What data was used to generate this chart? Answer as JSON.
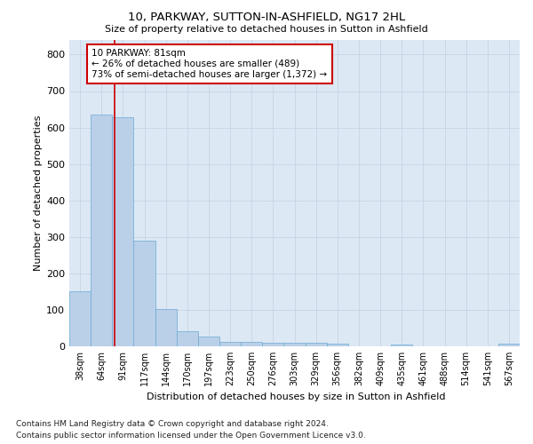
{
  "title": "10, PARKWAY, SUTTON-IN-ASHFIELD, NG17 2HL",
  "subtitle": "Size of property relative to detached houses in Sutton in Ashfield",
  "xlabel": "Distribution of detached houses by size in Sutton in Ashfield",
  "ylabel": "Number of detached properties",
  "footnote1": "Contains HM Land Registry data © Crown copyright and database right 2024.",
  "footnote2": "Contains public sector information licensed under the Open Government Licence v3.0.",
  "annotation_line1": "10 PARKWAY: 81sqm",
  "annotation_line2": "← 26% of detached houses are smaller (489)",
  "annotation_line3": "73% of semi-detached houses are larger (1,372) →",
  "bar_color": "#bad0e8",
  "bar_edge_color": "#6aaad4",
  "red_line_color": "#cc0000",
  "annotation_box_edge_color": "#cc0000",
  "categories": [
    "38sqm",
    "64sqm",
    "91sqm",
    "117sqm",
    "144sqm",
    "170sqm",
    "197sqm",
    "223sqm",
    "250sqm",
    "276sqm",
    "303sqm",
    "329sqm",
    "356sqm",
    "382sqm",
    "409sqm",
    "435sqm",
    "461sqm",
    "488sqm",
    "514sqm",
    "541sqm",
    "567sqm"
  ],
  "values": [
    150,
    635,
    627,
    290,
    103,
    42,
    28,
    12,
    12,
    10,
    10,
    9,
    8,
    1,
    1,
    6,
    1,
    1,
    1,
    1,
    7
  ],
  "ylim": [
    0,
    840
  ],
  "yticks": [
    0,
    100,
    200,
    300,
    400,
    500,
    600,
    700,
    800
  ],
  "red_line_x": 1.63,
  "grid_color": "#c8d4e4",
  "bg_color": "#dce8f4"
}
